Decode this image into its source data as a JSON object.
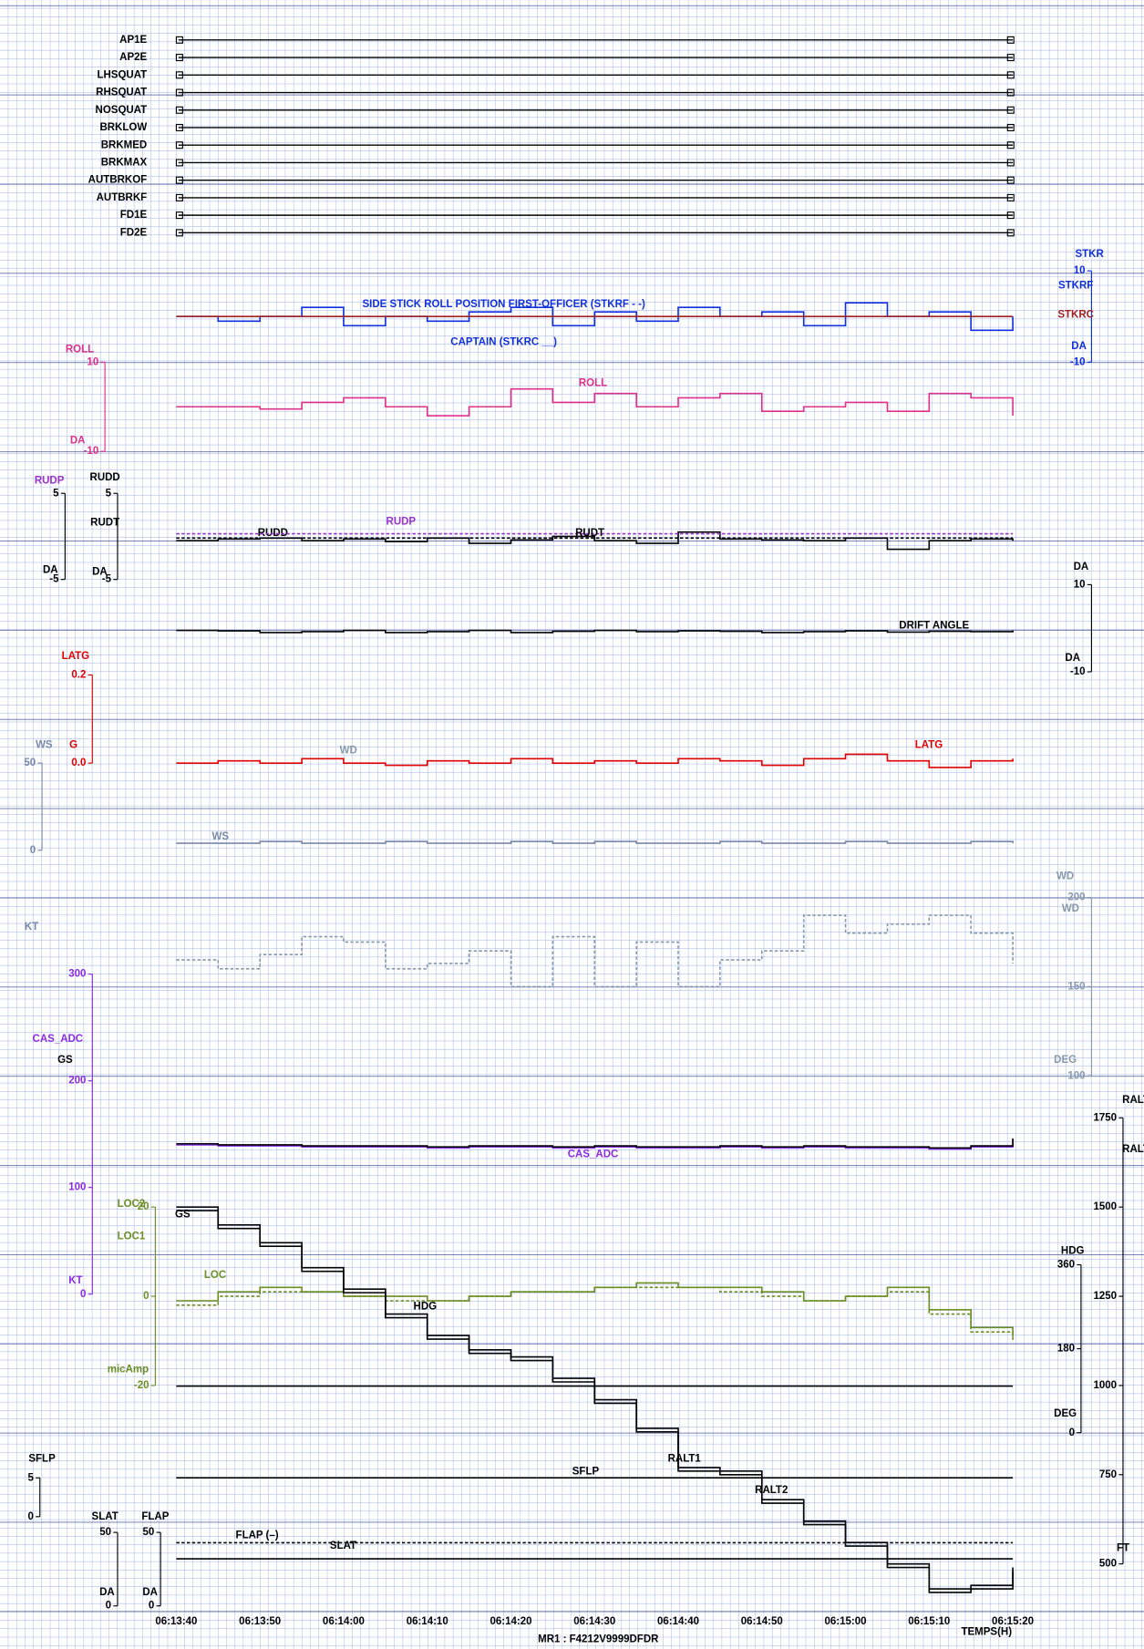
{
  "discretes": [
    "AP1E",
    "AP2E",
    "LHSQUAT",
    "RHSQUAT",
    "NOSQUAT",
    "BRKLOW",
    "BRKMED",
    "BRKMAX",
    "AUTBRKOF",
    "AUTBRKF",
    "FD1E",
    "FD2E"
  ],
  "time_axis": {
    "categories": [
      "06:13:40",
      null,
      "06:13:50",
      null,
      "06:14:00",
      null,
      "06:14:10",
      null,
      "06:14:20",
      null,
      "06:14:30",
      null,
      "06:14:40",
      null,
      "06:14:50",
      null,
      "06:15:00",
      null,
      "06:15:10",
      null,
      "06:15:20"
    ],
    "label": "TEMPS(H)"
  },
  "footer": "MR1 : F4212V9999DFDR",
  "chart_data": [
    {
      "type": "line",
      "ylim": [
        -10,
        10
      ],
      "yticks": [
        -10,
        10
      ],
      "axis_labels": [
        "STKR",
        "DA"
      ],
      "annotations": [
        "SIDE STICK ROLL POSITION FIRST-OFFICER (STKRF - -)",
        "CAPTAIN (STKRC __)"
      ],
      "series": [
        {
          "name": "STKRF",
          "color": "#1030e0",
          "values": [
            0,
            -1,
            0,
            2,
            -2,
            0,
            -1,
            1,
            2,
            -2,
            1,
            -1,
            2,
            0,
            1,
            -2,
            3,
            0,
            1,
            -3,
            0
          ]
        },
        {
          "name": "STKRC",
          "color": "#a02020",
          "values": [
            0,
            0,
            0,
            0,
            0,
            0,
            0,
            0,
            0,
            0,
            0,
            0,
            0,
            0,
            0,
            0,
            0,
            0,
            0,
            0,
            0
          ]
        }
      ]
    },
    {
      "type": "line",
      "ylim": [
        -10,
        10
      ],
      "yticks": [
        -10,
        10
      ],
      "axis_labels": [
        "DA"
      ],
      "annotations": [],
      "series": [
        {
          "name": "ROLL",
          "color": "#e0308a",
          "values": [
            0,
            0,
            -0.5,
            1,
            2,
            0,
            -2,
            0,
            4,
            1,
            3,
            0,
            2,
            3,
            -1,
            0,
            1,
            -1,
            3,
            2,
            -2
          ]
        }
      ]
    },
    {
      "type": "line",
      "ylim": [
        -5,
        5
      ],
      "yticks": [
        -5,
        5
      ],
      "axis_labels": [
        "DA",
        "DA"
      ],
      "annotations": [],
      "series": [
        {
          "name": "RUDD",
          "color": "#000000",
          "values": [
            -0.5,
            -0.3,
            -0.2,
            -0.5,
            -0.3,
            -0.6,
            -0.2,
            -0.8,
            -0.4,
            0,
            -0.5,
            -0.8,
            0.5,
            -0.3,
            -0.4,
            -0.5,
            -0.2,
            -1.5,
            -0.5,
            -0.3,
            -0.5
          ]
        },
        {
          "name": "RUDP",
          "color": "#9933cc",
          "values": [
            0.3,
            0.3,
            0.3,
            0.3,
            0.3,
            0.3,
            0.3,
            0.3,
            0.3,
            0.3,
            0.3,
            0.3,
            0.3,
            0.3,
            0.3,
            0.3,
            0.3,
            0.3,
            0.3,
            0.3,
            0.3
          ]
        },
        {
          "name": "RUDT",
          "color": "#000000",
          "values": [
            -0.2,
            -0.2,
            -0.2,
            -0.2,
            -0.2,
            -0.2,
            -0.2,
            -0.2,
            -0.2,
            -0.2,
            -0.2,
            -0.2,
            -0.2,
            -0.2,
            -0.2,
            -0.2,
            -0.2,
            -0.2,
            -0.2,
            -0.2,
            -0.2
          ]
        }
      ]
    },
    {
      "type": "line",
      "ylim": [
        -10,
        10
      ],
      "yticks": [
        -10,
        10
      ],
      "axis_labels": [
        "DA",
        "DA"
      ],
      "annotations": [],
      "series": [
        {
          "name": "DRIFT ANGLE",
          "color": "#000000",
          "values": [
            -0.5,
            -0.6,
            -1,
            -0.8,
            -0.5,
            -1,
            -0.8,
            -0.5,
            -1,
            -0.7,
            -0.5,
            -0.8,
            -0.6,
            -0.7,
            -1,
            -0.8,
            -0.6,
            -0.9,
            -0.7,
            -0.8,
            -0.5
          ]
        }
      ]
    },
    {
      "type": "line",
      "ylim": [
        0,
        0.2
      ],
      "yticks": [
        {
          "value": 0,
          "label": "0.0"
        },
        0.2
      ],
      "axis_labels": [
        "G"
      ],
      "annotations": [],
      "series": [
        {
          "name": "LATG",
          "color": "#e00000",
          "values": [
            0,
            0.005,
            0,
            0.01,
            0,
            -0.005,
            0.005,
            0,
            0.01,
            0,
            0.005,
            0,
            0.01,
            0.005,
            -0.005,
            0.01,
            0.02,
            0.005,
            -0.01,
            0.005,
            0.01
          ]
        }
      ]
    },
    {
      "type": "line",
      "ylim": [
        0,
        50
      ],
      "yticks": [
        0,
        50
      ],
      "axis_labels": [
        "KT"
      ],
      "annotations": [],
      "series": [
        {
          "name": "WS",
          "color": "#7788aa",
          "values": [
            4,
            4,
            5,
            4,
            4,
            5,
            4,
            4,
            5,
            4,
            5,
            4,
            4,
            5,
            4,
            4,
            5,
            4,
            4,
            5,
            4
          ]
        }
      ]
    },
    {
      "type": "line",
      "ylim": [
        100,
        200
      ],
      "yticks": [
        100,
        150,
        200
      ],
      "axis_labels": [
        "DEG"
      ],
      "annotations": [],
      "series": [
        {
          "name": "WD",
          "color": "#8899aa",
          "values": [
            165,
            160,
            168,
            178,
            175,
            160,
            163,
            170,
            150,
            178,
            150,
            175,
            150,
            165,
            170,
            190,
            180,
            185,
            190,
            180,
            163
          ]
        }
      ]
    },
    {
      "type": "line",
      "ylim": [
        0,
        300
      ],
      "yticks": [
        0,
        100,
        200,
        300
      ],
      "axis_labels": [
        "KT"
      ],
      "annotations": [],
      "series": [
        {
          "name": "CAS_ADC",
          "color": "#8a2be2",
          "values": [
            140,
            139,
            139,
            138,
            138,
            138,
            137,
            138,
            138,
            137,
            138,
            137,
            137,
            138,
            137,
            138,
            137,
            137,
            136,
            138,
            145
          ]
        },
        {
          "name": "GS",
          "color": "#000000",
          "values": [
            141,
            140,
            140,
            139,
            139,
            139,
            138,
            139,
            139,
            138,
            139,
            138,
            138,
            139,
            138,
            139,
            138,
            138,
            137,
            139,
            146
          ]
        }
      ]
    },
    {
      "type": "line",
      "ylim": [
        -20,
        20
      ],
      "yticks": [
        -20,
        0,
        20
      ],
      "axis_labels": [
        "micAmp"
      ],
      "annotations": [
        "LOC"
      ],
      "series": [
        {
          "name": "LOC2",
          "color": "#6b8e23",
          "values": [
            -1,
            1,
            2,
            1,
            0,
            0,
            -1,
            0,
            1,
            1,
            2,
            3,
            2,
            2,
            1,
            -1,
            0,
            2,
            -3,
            -7,
            -9
          ]
        },
        {
          "name": "LOC1",
          "color": "#6b8e23",
          "values": [
            -2,
            0,
            1,
            1,
            0,
            -1,
            -1,
            0,
            1,
            1,
            2,
            2,
            2,
            1,
            0,
            -1,
            0,
            1,
            -4,
            -8,
            -10
          ]
        }
      ]
    },
    {
      "type": "line",
      "ylim": [
        0,
        360
      ],
      "yticks": [
        0,
        180,
        360
      ],
      "axis_labels": [
        "DEG"
      ],
      "annotations": [],
      "series": [
        {
          "name": "HDG",
          "color": "#000000",
          "values": [
            100,
            100,
            100,
            100,
            100,
            100,
            100,
            100,
            100,
            100,
            100,
            100,
            100,
            100,
            100,
            100,
            100,
            100,
            100,
            100,
            100
          ]
        }
      ]
    },
    {
      "type": "line",
      "ylim": [
        500,
        1750
      ],
      "yticks": [
        500,
        750,
        1000,
        1250,
        1500,
        1750
      ],
      "axis_labels": [
        "FT"
      ],
      "annotations": [],
      "series": [
        {
          "name": "RALT1",
          "color": "#000000",
          "values": [
            1500,
            1450,
            1400,
            1330,
            1270,
            1200,
            1140,
            1100,
            1080,
            1020,
            960,
            880,
            770,
            760,
            680,
            620,
            560,
            500,
            430,
            440,
            490
          ]
        },
        {
          "name": "RALT2",
          "color": "#000000",
          "values": [
            1490,
            1440,
            1390,
            1320,
            1260,
            1190,
            1130,
            1090,
            1070,
            1010,
            950,
            870,
            760,
            750,
            670,
            610,
            550,
            490,
            420,
            430,
            480
          ]
        }
      ]
    },
    {
      "type": "line",
      "ylim": [
        0,
        5
      ],
      "yticks": [
        0,
        5
      ],
      "axis_labels": [],
      "annotations": [],
      "series": [
        {
          "name": "SFLP",
          "color": "#000000",
          "values": [
            5,
            5,
            5,
            5,
            5,
            5,
            5,
            5,
            5,
            5,
            5,
            5,
            5,
            5,
            5,
            5,
            5,
            5,
            5,
            5,
            5
          ]
        }
      ]
    },
    {
      "type": "line",
      "ylim": [
        0,
        50
      ],
      "yticks": [
        0,
        50
      ],
      "axis_labels": [
        "DA",
        "DA"
      ],
      "annotations": [
        "FLAP (–)"
      ],
      "series": [
        {
          "name": "SLAT",
          "color": "#000000",
          "values": [
            32,
            32,
            32,
            32,
            32,
            32,
            32,
            32,
            32,
            32,
            32,
            32,
            32,
            32,
            32,
            32,
            32,
            32,
            32,
            32,
            32
          ]
        },
        {
          "name": "FLAP",
          "color": "#000000",
          "values": [
            43,
            43,
            43,
            43,
            43,
            43,
            43,
            43,
            43,
            43,
            43,
            43,
            43,
            43,
            43,
            43,
            43,
            43,
            43,
            43,
            43
          ]
        }
      ]
    }
  ]
}
